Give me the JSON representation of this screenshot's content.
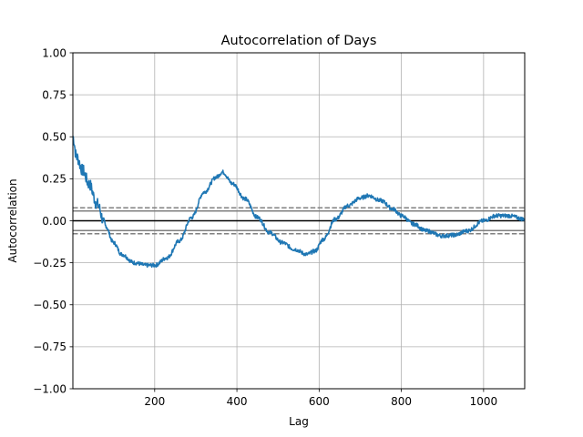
{
  "chart_data": {
    "type": "line",
    "title": "Autocorrelation of Days",
    "xlabel": "Lag",
    "ylabel": "Autocorrelation",
    "xlim": [
      1,
      1100
    ],
    "ylim": [
      -1.0,
      1.0
    ],
    "xticks": [
      200,
      400,
      600,
      800,
      1000
    ],
    "xtick_labels": [
      "200",
      "400",
      "600",
      "800",
      "1000"
    ],
    "yticks": [
      -1.0,
      -0.75,
      -0.5,
      -0.25,
      0.0,
      0.25,
      0.5,
      0.75,
      1.0
    ],
    "ytick_labels": [
      "−1.00",
      "−0.75",
      "−0.50",
      "−0.25",
      "0.00",
      "0.25",
      "0.50",
      "0.75",
      "1.00"
    ],
    "grid": true,
    "series": [
      {
        "color": "#1f77b4",
        "noise": 0.012,
        "x": [
          1,
          10,
          25,
          40,
          60,
          80,
          100,
          120,
          150,
          180,
          200,
          230,
          260,
          290,
          320,
          350,
          365,
          390,
          420,
          450,
          480,
          510,
          540,
          570,
          590,
          610,
          640,
          670,
          700,
          720,
          750,
          780,
          800,
          830,
          860,
          900,
          930,
          960,
          1000,
          1030,
          1060,
          1100
        ],
        "y": [
          0.5,
          0.38,
          0.3,
          0.22,
          0.1,
          -0.03,
          -0.13,
          -0.2,
          -0.25,
          -0.265,
          -0.265,
          -0.22,
          -0.12,
          0.02,
          0.17,
          0.26,
          0.29,
          0.22,
          0.13,
          0.02,
          -0.07,
          -0.13,
          -0.17,
          -0.2,
          -0.18,
          -0.11,
          0.01,
          0.09,
          0.135,
          0.15,
          0.12,
          0.07,
          0.03,
          -0.02,
          -0.06,
          -0.09,
          -0.085,
          -0.06,
          0.0,
          0.03,
          0.03,
          0.01
        ]
      }
    ],
    "reference_lines": [
      {
        "y": 0.0,
        "style": "solid",
        "color": "#000000"
      },
      {
        "y": 0.0585,
        "style": "solid",
        "color": "#808080"
      },
      {
        "y": -0.0585,
        "style": "solid",
        "color": "#808080"
      },
      {
        "y": 0.0771,
        "style": "dashed",
        "color": "#808080"
      },
      {
        "y": -0.0771,
        "style": "dashed",
        "color": "#808080"
      }
    ]
  }
}
